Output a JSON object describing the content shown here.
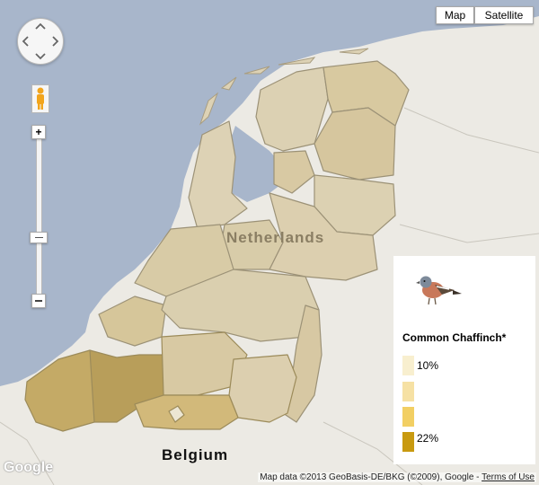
{
  "map_type_control": {
    "map_label": "Map",
    "satellite_label": "Satellite"
  },
  "labels": {
    "country_main": "Netherlands",
    "country_south": "Belgium",
    "logo": "Google"
  },
  "legend": {
    "species": "Common Chaffinch*",
    "items": [
      {
        "label": "10%",
        "color": "#f8efcf"
      },
      {
        "label": "",
        "color": "#f6e1a4"
      },
      {
        "label": "",
        "color": "#f2cf63"
      },
      {
        "label": "22%",
        "color": "#c89a10"
      }
    ]
  },
  "attribution": {
    "text": "Map data ©2013 GeoBasis-DE/BKG (©2009), Google - ",
    "terms": "Terms of Use"
  },
  "colors": {
    "water": "#a8b6cb",
    "land": "#eceae4",
    "region_light": "#ddd2b5",
    "region_mid": "#d5c49a",
    "region_dark": "#b49a55"
  }
}
